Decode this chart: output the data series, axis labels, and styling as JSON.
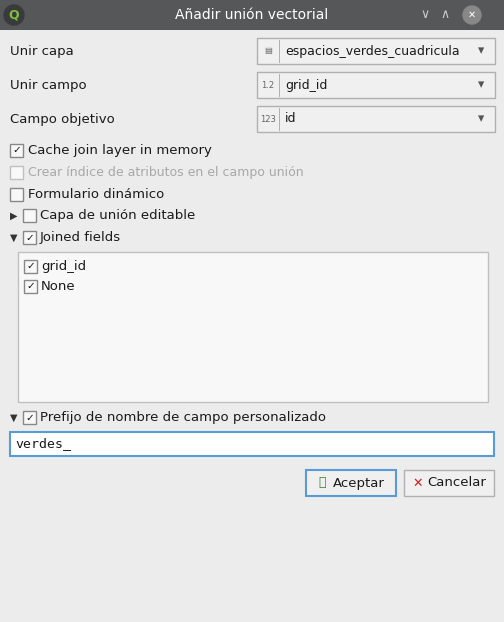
{
  "title": "Añadir unión vectorial",
  "bg_color": "#ececec",
  "titlebar_color": "#555759",
  "titlebar_text_color": "#ffffff",
  "field_bg": "#ffffff",
  "field_bg_dropdown": "#f0f0f0",
  "field_border": "#b0b0b0",
  "text_color": "#1a1a1a",
  "disabled_text_color": "#a8a8a8",
  "highlight_border": "#5b9bd5",
  "listbox_bg": "#f8f8f8",
  "listbox_border": "#c0c0c0",
  "rows": [
    {
      "label": "Unir capa",
      "value": "espacios_verdes_cuadricula",
      "icon": "table"
    },
    {
      "label": "Unir campo",
      "value": "grid_id",
      "icon": "1.2"
    },
    {
      "label": "Campo objetivo",
      "value": "id",
      "icon": "123"
    }
  ],
  "checkboxes": [
    {
      "label": "Cache join layer in memory",
      "checked": true,
      "enabled": true
    },
    {
      "label": "Crear índice de atributos en el campo unión",
      "checked": false,
      "enabled": false
    },
    {
      "label": "Formulario dinámico",
      "checked": false,
      "enabled": true
    }
  ],
  "expandable_rows": [
    {
      "label": "Capa de unión editable",
      "expanded": false,
      "checked": false
    },
    {
      "label": "Joined fields",
      "expanded": true,
      "checked": true
    }
  ],
  "joined_fields": [
    "grid_id",
    "None"
  ],
  "prefix_label": "Prefijo de nombre de campo personalizado",
  "prefix_value": "verdes_",
  "btn_accept": "Aceptar",
  "btn_cancel": "Cancelar"
}
